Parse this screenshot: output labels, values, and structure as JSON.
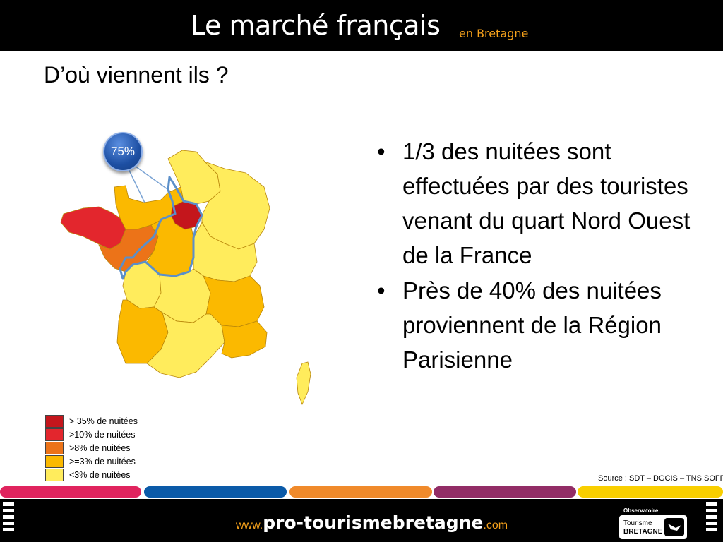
{
  "header": {
    "brand_main": "Le marché français",
    "brand_sub": "en Bretagne"
  },
  "slide": {
    "title": "D’où viennent ils ?",
    "badge": "75%"
  },
  "legend": [
    {
      "label": "> 35% de nuitées",
      "color": "#c4161c"
    },
    {
      "label": ">10% de nuitées",
      "color": "#e3262d"
    },
    {
      "label": ">8% de nuitées",
      "color": "#ec7318"
    },
    {
      "label": ">=3% de nuitées",
      "color": "#fbb900"
    },
    {
      "label": "<3% de nuitées",
      "color": "#ffec5c"
    }
  ],
  "bullets": [
    "1/3 des nuitées sont effectuées par des touristes venant du quart Nord Ouest de la France",
    "Près de 40% des nuitées proviennent de la Région Parisienne"
  ],
  "bullet_symbol": "•",
  "source": "Source : SDT – DGCIS – TNS SOFRES",
  "footer": {
    "url_prefix": "www.",
    "url_main": "pro-tourismebretagne",
    "url_suffix": ".com",
    "observatoire": "Observatoire",
    "logo_line1": "Tourisme",
    "logo_line2": "BRETAGNE"
  },
  "color_bars": [
    "#e0245e",
    "#0b5aa8",
    "#f08a2b",
    "#922d66",
    "#f9cf00"
  ],
  "map_colors": {
    "paris": "#c4161c",
    "bretagne": "#e3262d",
    "pays_de_la_loire": "#ec7318",
    "orange": "#fbb900",
    "yellow": "#ffec5c",
    "outline": "#5b8fc9"
  }
}
